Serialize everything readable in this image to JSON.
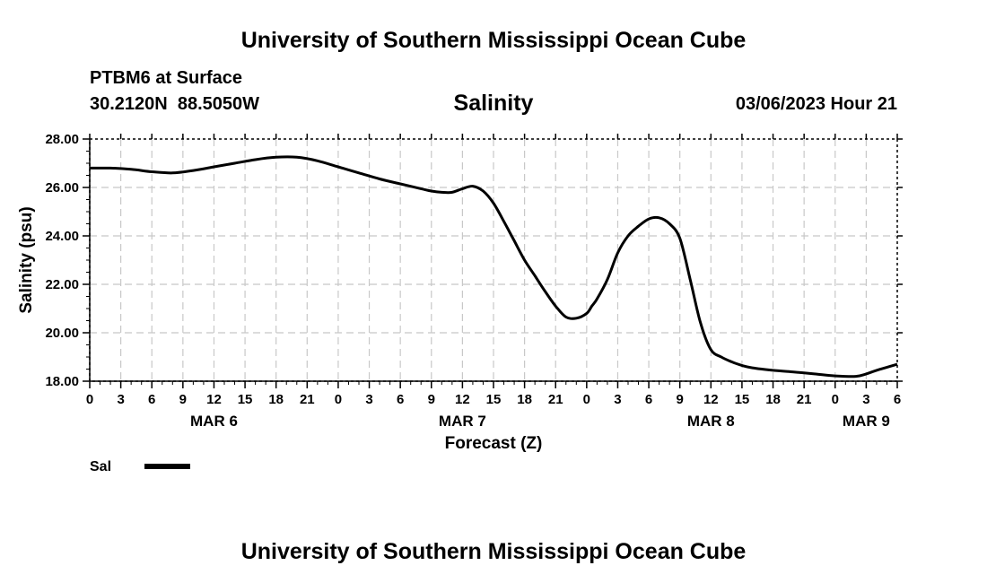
{
  "header": {
    "title": "University of Southern Mississippi Ocean Cube",
    "station": "PTBM6 at Surface",
    "coords": "30.2120N  88.5050W",
    "chart_title": "Salinity",
    "datetime": "03/06/2023 Hour 21"
  },
  "footer": {
    "title": "University of Southern Mississippi Ocean Cube"
  },
  "chart_data": {
    "type": "line",
    "title": "Salinity",
    "xlabel": "Forecast (Z)",
    "ylabel": "Salinity (psu)",
    "xunit": "forecast hour from MAR 6 00Z",
    "xlim": [
      0,
      78
    ],
    "ylim": [
      18,
      28
    ],
    "grid": true,
    "x_ticks": [
      0,
      3,
      6,
      9,
      12,
      15,
      18,
      21,
      24,
      27,
      30,
      33,
      36,
      39,
      42,
      45,
      48,
      51,
      54,
      57,
      60,
      63,
      66,
      69,
      72,
      75,
      78
    ],
    "x_tick_labels": [
      "0",
      "3",
      "6",
      "9",
      "12",
      "15",
      "18",
      "21",
      "0",
      "3",
      "6",
      "9",
      "12",
      "15",
      "18",
      "21",
      "0",
      "3",
      "6",
      "9",
      "12",
      "15",
      "18",
      "21",
      "0",
      "3",
      "6"
    ],
    "y_ticks": [
      18,
      20,
      22,
      24,
      26,
      28
    ],
    "y_tick_labels": [
      "18.00",
      "20.00",
      "22.00",
      "24.00",
      "26.00",
      "28.00"
    ],
    "date_labels": [
      {
        "x": 12,
        "label": "MAR 6"
      },
      {
        "x": 36,
        "label": "MAR 7"
      },
      {
        "x": 60,
        "label": "MAR 8"
      },
      {
        "x": 75,
        "label": "MAR 9"
      }
    ],
    "legend": {
      "position": "bottom-left",
      "label": "Sal"
    },
    "series": [
      {
        "name": "Sal",
        "x": [
          0,
          2,
          4,
          6,
          8,
          10,
          12,
          14,
          16,
          18,
          20,
          22,
          24,
          26,
          28,
          30,
          32,
          33,
          34,
          35,
          36,
          37,
          38,
          39,
          40,
          41,
          42,
          43,
          44,
          45,
          46,
          47,
          48,
          48.5,
          49,
          50,
          51,
          52,
          53,
          54,
          55,
          56,
          57,
          58,
          59,
          60,
          61,
          62,
          63,
          64,
          66,
          68,
          70,
          72,
          74,
          75,
          76,
          78
        ],
        "values": [
          26.8,
          26.8,
          26.75,
          26.65,
          26.6,
          26.7,
          26.85,
          27.0,
          27.15,
          27.25,
          27.25,
          27.1,
          26.85,
          26.6,
          26.35,
          26.15,
          25.95,
          25.85,
          25.8,
          25.8,
          25.95,
          26.05,
          25.85,
          25.35,
          24.6,
          23.8,
          23.0,
          22.35,
          21.7,
          21.1,
          20.65,
          20.6,
          20.8,
          21.1,
          21.4,
          22.2,
          23.3,
          24.0,
          24.4,
          24.7,
          24.75,
          24.5,
          23.9,
          22.2,
          20.4,
          19.3,
          19.0,
          18.8,
          18.65,
          18.55,
          18.45,
          18.38,
          18.3,
          18.22,
          18.2,
          18.3,
          18.45,
          18.7
        ]
      }
    ]
  }
}
